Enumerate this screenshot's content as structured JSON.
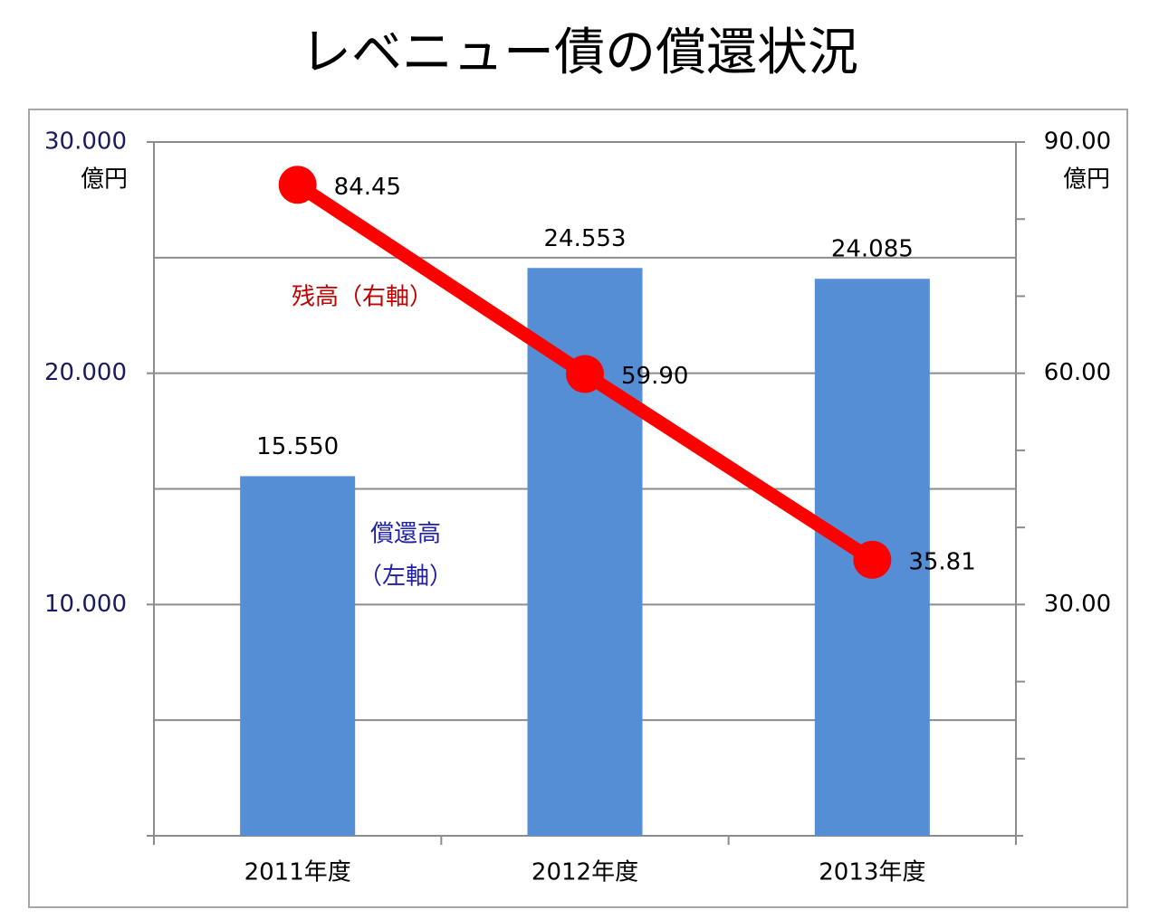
{
  "chart_data": {
    "type": "bar",
    "title": "レベニュー債の償還状況",
    "categories": [
      "2011年度",
      "2012年度",
      "2013年度"
    ],
    "ylim": [
      0,
      30
    ],
    "yticks": [
      {
        "value": 10,
        "label": "10.000"
      },
      {
        "value": 20,
        "label": "20.000"
      },
      {
        "value": 30,
        "label": "30.000"
      }
    ],
    "minor_yticks": [
      5,
      15,
      25
    ],
    "y_unit": "億円",
    "y2lim": [
      0,
      90
    ],
    "y2ticks": [
      {
        "value": 30,
        "label": "30.00"
      },
      {
        "value": 60,
        "label": "60.00"
      },
      {
        "value": 90,
        "label": "90.00"
      }
    ],
    "minor_y2ticks": [
      10,
      20,
      40,
      50,
      70,
      80
    ],
    "y2_unit": "億円",
    "grid": true,
    "series": [
      {
        "type": "bar",
        "color": "#558ed5",
        "values": [
          15.55,
          24.553,
          24.085
        ],
        "value_labels": [
          "15.550",
          "24.553",
          "24.085"
        ]
      },
      {
        "type": "line",
        "axis": "y2",
        "color": "#ff0000",
        "values": [
          84.45,
          59.9,
          35.81
        ],
        "value_labels": [
          "84.45",
          "59.90",
          "35.81"
        ]
      }
    ],
    "annotations": [
      "残高（右軸）",
      "償還高",
      "（左軸）"
    ]
  }
}
